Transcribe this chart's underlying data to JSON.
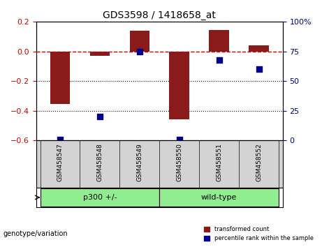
{
  "title": "GDS3598 / 1418658_at",
  "samples": [
    "GSM458547",
    "GSM458548",
    "GSM458549",
    "GSM458550",
    "GSM458551",
    "GSM458552"
  ],
  "red_values": [
    -0.355,
    -0.03,
    0.14,
    -0.455,
    0.145,
    0.04
  ],
  "blue_values": [
    1.0,
    20.0,
    75.0,
    1.0,
    68.0,
    60.0
  ],
  "ylim_left": [
    -0.6,
    0.2
  ],
  "ylim_right": [
    0,
    100
  ],
  "yticks_left": [
    0.2,
    0.0,
    -0.2,
    -0.4,
    -0.6
  ],
  "yticks_right": [
    100,
    75,
    50,
    25,
    0
  ],
  "groups": [
    {
      "label": "p300 +/-",
      "indices": [
        0,
        1,
        2
      ],
      "color": "#90EE90"
    },
    {
      "label": "wild-type",
      "indices": [
        3,
        4,
        5
      ],
      "color": "#90EE90"
    }
  ],
  "group_label_x": "genotype/variation",
  "red_color": "#8B1A1A",
  "blue_color": "#00008B",
  "dashed_line_color": "#CD0000",
  "dotted_line_color": "#000000",
  "bar_width": 0.5,
  "blue_marker_size": 6,
  "background_plot": "#FFFFFF",
  "background_label_area": "#D3D3D3",
  "background_group_area": "#90EE90"
}
